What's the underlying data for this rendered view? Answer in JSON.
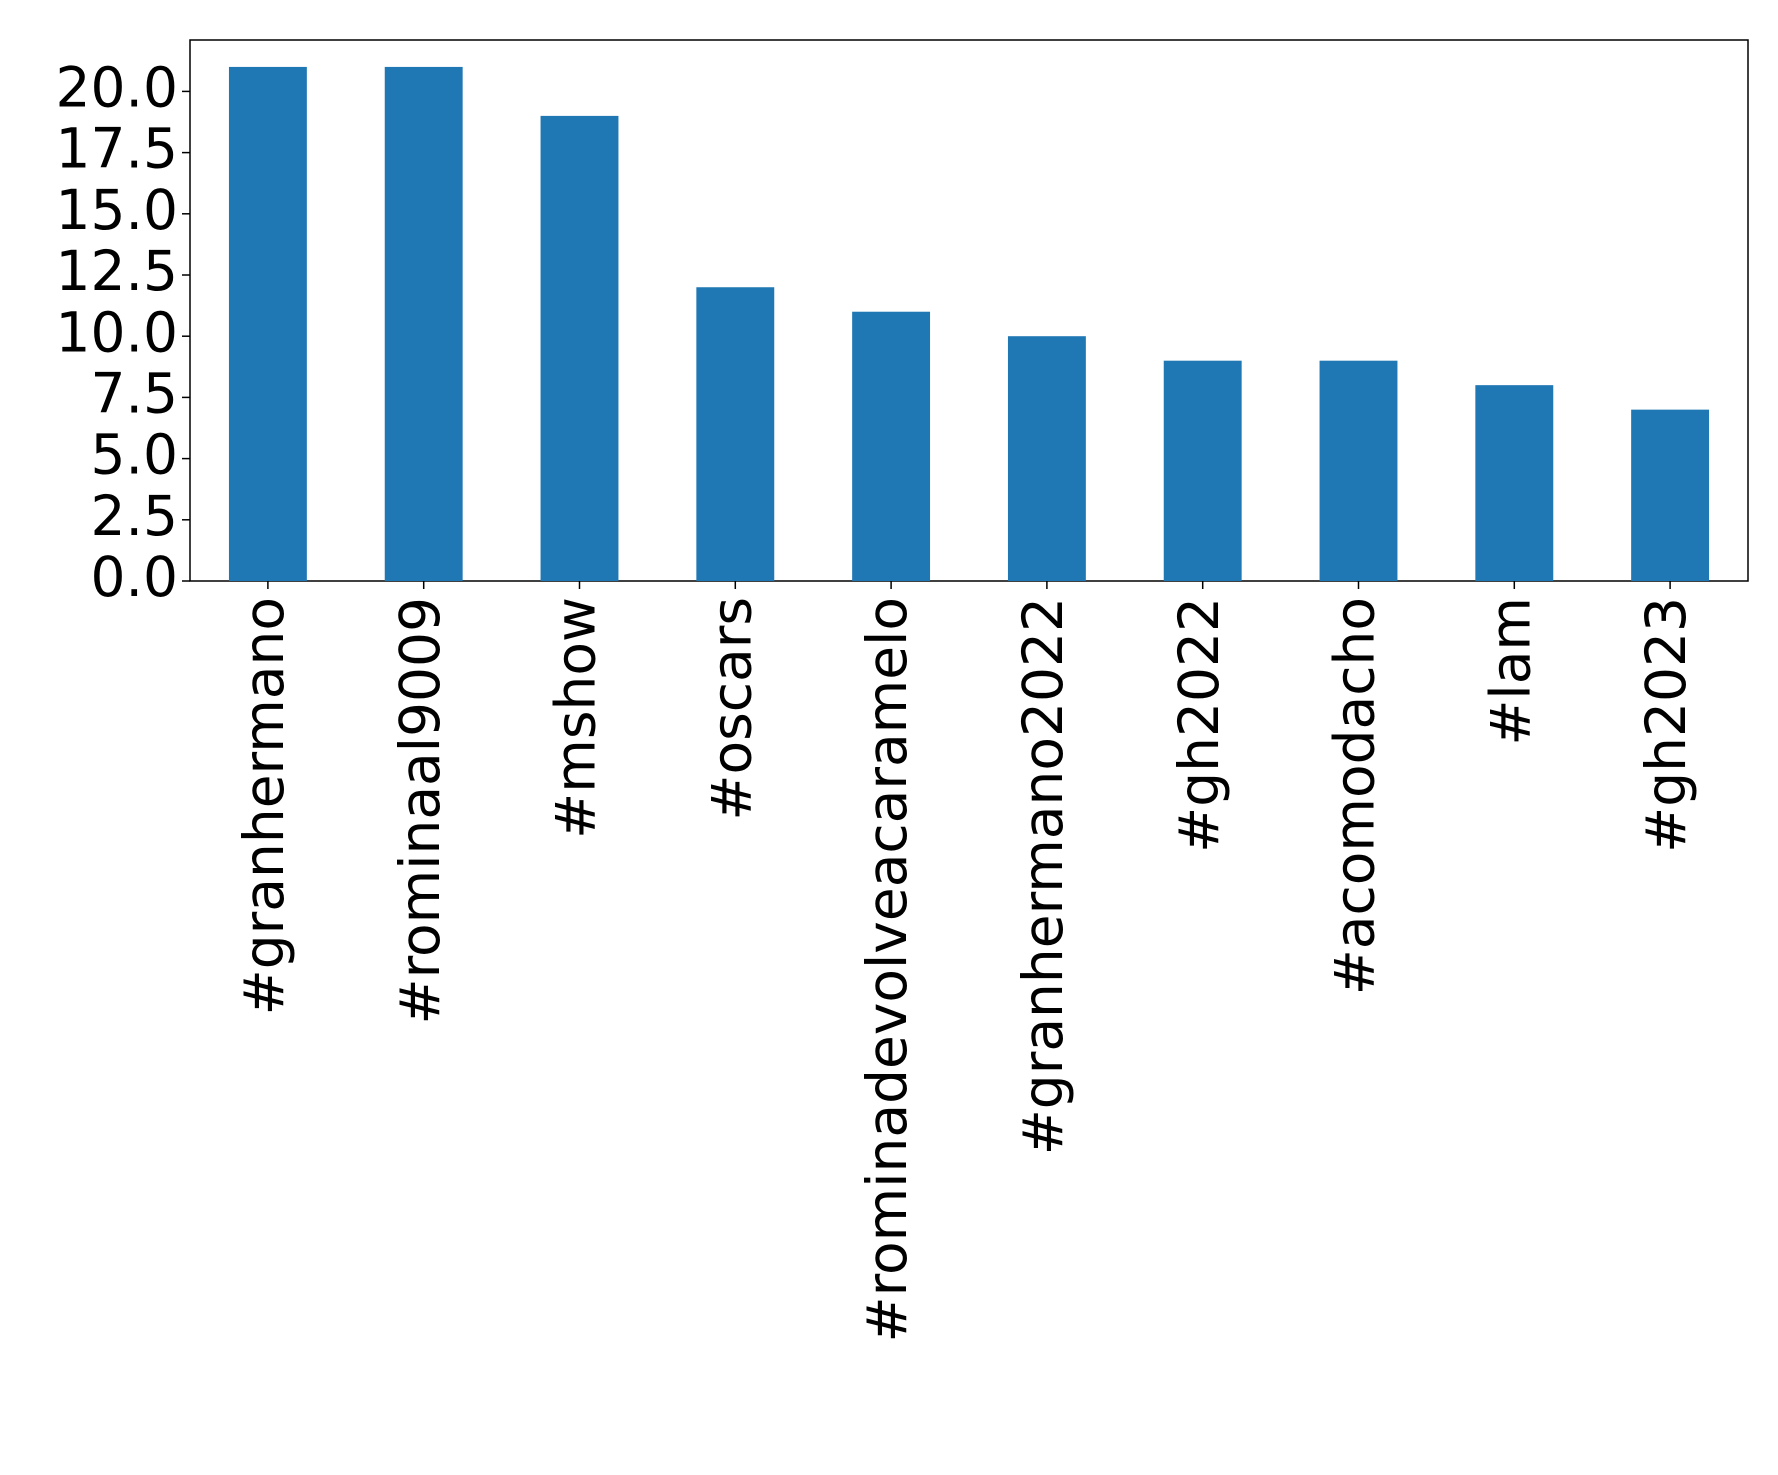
{
  "chart_data": {
    "type": "bar",
    "categories": [
      "#granhermano",
      "#rominaal9009",
      "#mshow",
      "#oscars",
      "#rominadevolveacaramelo",
      "#granhermano2022",
      "#gh2022",
      "#acomodacho",
      "#lam",
      "#gh2023"
    ],
    "values": [
      21,
      21,
      19,
      12,
      11,
      10,
      9,
      9,
      8,
      7
    ],
    "color": "#1f77b4",
    "ylim": [
      0,
      22.1
    ],
    "yticks": [
      {
        "value": 0,
        "label": "0.0"
      },
      {
        "value": 2.5,
        "label": "2.5"
      },
      {
        "value": 5,
        "label": "5.0"
      },
      {
        "value": 7.5,
        "label": "7.5"
      },
      {
        "value": 10,
        "label": "10.0"
      },
      {
        "value": 12.5,
        "label": "12.5"
      },
      {
        "value": 15,
        "label": "15.0"
      },
      {
        "value": 17.5,
        "label": "17.5"
      },
      {
        "value": 20,
        "label": "20.0"
      }
    ],
    "grid": false
  }
}
